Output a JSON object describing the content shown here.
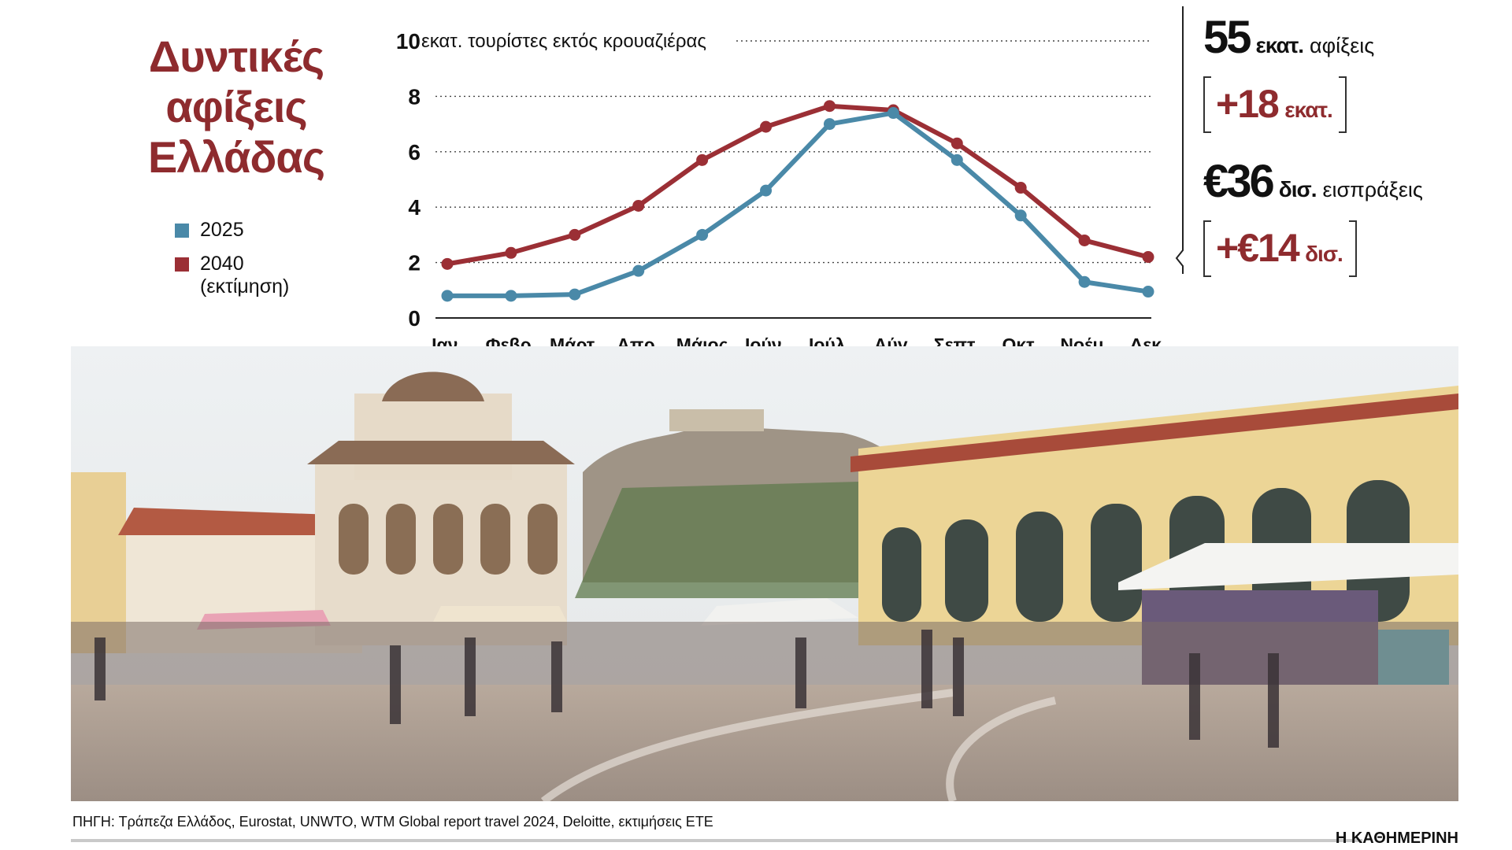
{
  "title_lines": [
    "Δυντικές",
    "αφίξεις",
    "Ελλάδας"
  ],
  "legend": [
    {
      "label": "2025",
      "sub": "",
      "color": "#4a89a8"
    },
    {
      "label": "2040",
      "sub": "(εκτίμηση)",
      "color": "#9b2f35"
    }
  ],
  "chart_data": {
    "type": "line",
    "ylabel": "εκατ. τουρίστες εκτός κρουαζιέρας",
    "ylim": [
      0,
      10
    ],
    "yticks": [
      0,
      2,
      4,
      6,
      8,
      10
    ],
    "grid": true,
    "categories": [
      "Ιαν.",
      "Φεβρ.",
      "Μάρτ.",
      "Απρ.",
      "Μάιος",
      "Ιούν.",
      "Ιούλ.",
      "Αύγ.",
      "Σεπτ.",
      "Οκτ.",
      "Νοέμ.",
      "Δεκ."
    ],
    "series": [
      {
        "name": "2025",
        "color": "#4a89a8",
        "values": [
          0.8,
          0.8,
          0.85,
          1.7,
          3.0,
          4.6,
          7.0,
          7.4,
          5.7,
          3.7,
          1.3,
          0.95
        ]
      },
      {
        "name": "2040",
        "color": "#9b2f35",
        "values": [
          1.95,
          2.35,
          3.0,
          4.05,
          5.7,
          6.9,
          7.65,
          7.5,
          6.3,
          4.7,
          2.8,
          2.2
        ]
      }
    ]
  },
  "stats": {
    "arrivals": {
      "value": "55",
      "unit": "εκατ.",
      "label": "αφίξεις",
      "delta_num": "+18",
      "delta_unit": "εκατ."
    },
    "revenue": {
      "value": "€36",
      "unit": "δισ.",
      "label": "εισπράξεις",
      "delta_num": "+€14",
      "delta_unit": "δισ."
    }
  },
  "source": "ΠΗΓΗ: Τράπεζα Ελλάδος, Eurostat, UNWTO, WTM Global report travel 2024, Deloitte, εκτιμήσεις ΕΤΕ",
  "brand": "Η ΚΑΘΗΜΕΡΙΝΗ"
}
